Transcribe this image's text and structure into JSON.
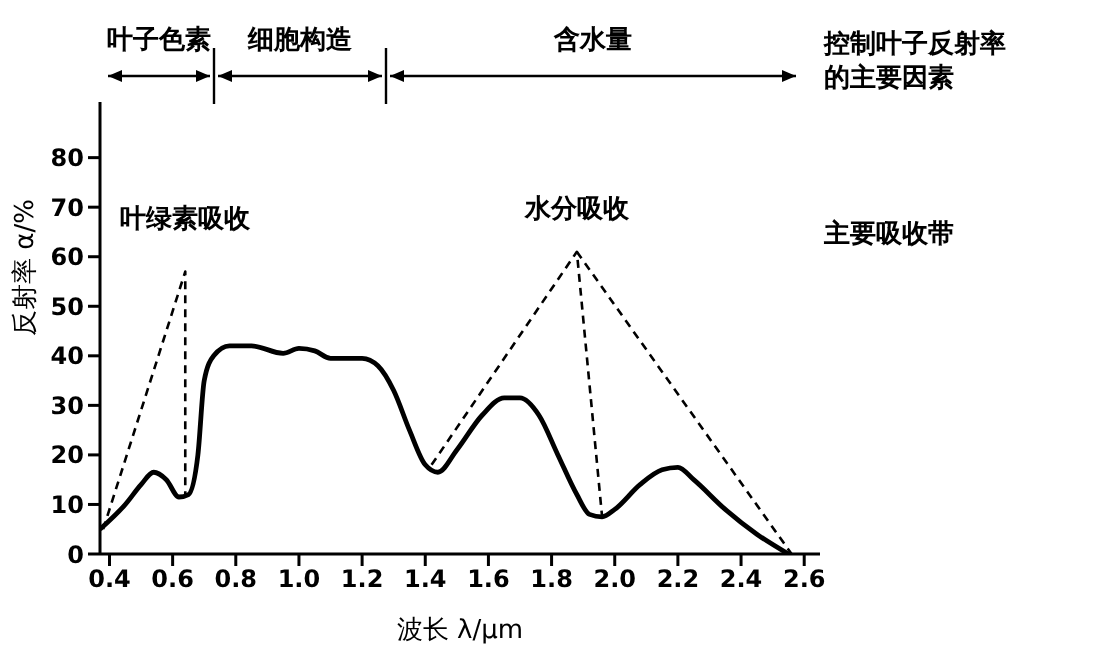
{
  "chart_data": {
    "type": "line",
    "xlabel": "波长 λ/μm",
    "ylabel": "反射率 α/%",
    "xlim": [
      0.37,
      2.65
    ],
    "ylim": [
      0,
      88
    ],
    "xticks": [
      0.4,
      0.6,
      0.8,
      {
        "value": 1,
        "label": "1.0"
      },
      1.2,
      1.4,
      1.6,
      1.8,
      {
        "value": 2,
        "label": "2.0"
      },
      2.2,
      2.4,
      2.6
    ],
    "yticks": [
      0,
      10,
      20,
      30,
      40,
      50,
      60,
      70,
      80
    ],
    "marker": "none",
    "series": [
      {
        "color": "#000000",
        "line_style": "solid",
        "x": [
          0.37,
          0.45,
          0.5,
          0.54,
          0.58,
          0.62,
          0.65,
          0.68,
          0.7,
          0.73,
          0.78,
          0.85,
          0.95,
          1.0,
          1.05,
          1.1,
          1.2,
          1.25,
          1.3,
          1.35,
          1.4,
          1.44,
          1.5,
          1.58,
          1.65,
          1.7,
          1.76,
          1.82,
          1.88,
          1.92,
          1.96,
          2.0,
          2.08,
          2.15,
          2.2,
          2.25,
          2.35,
          2.45,
          2.55
        ],
        "values": [
          5,
          10,
          14,
          16.5,
          15,
          11.5,
          12,
          20,
          35,
          40,
          42,
          42,
          40.5,
          41.5,
          41,
          39.5,
          39.5,
          38,
          33,
          25,
          18,
          16.5,
          21,
          28,
          31.5,
          31.5,
          28,
          20,
          12,
          8,
          7.5,
          9,
          14,
          17,
          17.5,
          15,
          9,
          4,
          0
        ]
      },
      {
        "color": "#000000",
        "line_style": "dashed",
        "x": [
          0.38,
          0.64,
          0.64
        ],
        "values": [
          5,
          57,
          11.5
        ]
      },
      {
        "color": "#000000",
        "line_style": "dashed",
        "x": [
          1.42,
          1.88,
          1.96
        ],
        "values": [
          18,
          61,
          7.5
        ]
      },
      {
        "color": "#000000",
        "line_style": "dashed",
        "x": [
          1.88,
          2.56
        ],
        "values": [
          61,
          0
        ]
      }
    ],
    "annotations": [
      "叶子色素",
      "细胞构造",
      "含水量",
      "控制叶子反射率的主要因素",
      "主要吸收带",
      "叶绿素吸收",
      "水分吸收"
    ]
  }
}
